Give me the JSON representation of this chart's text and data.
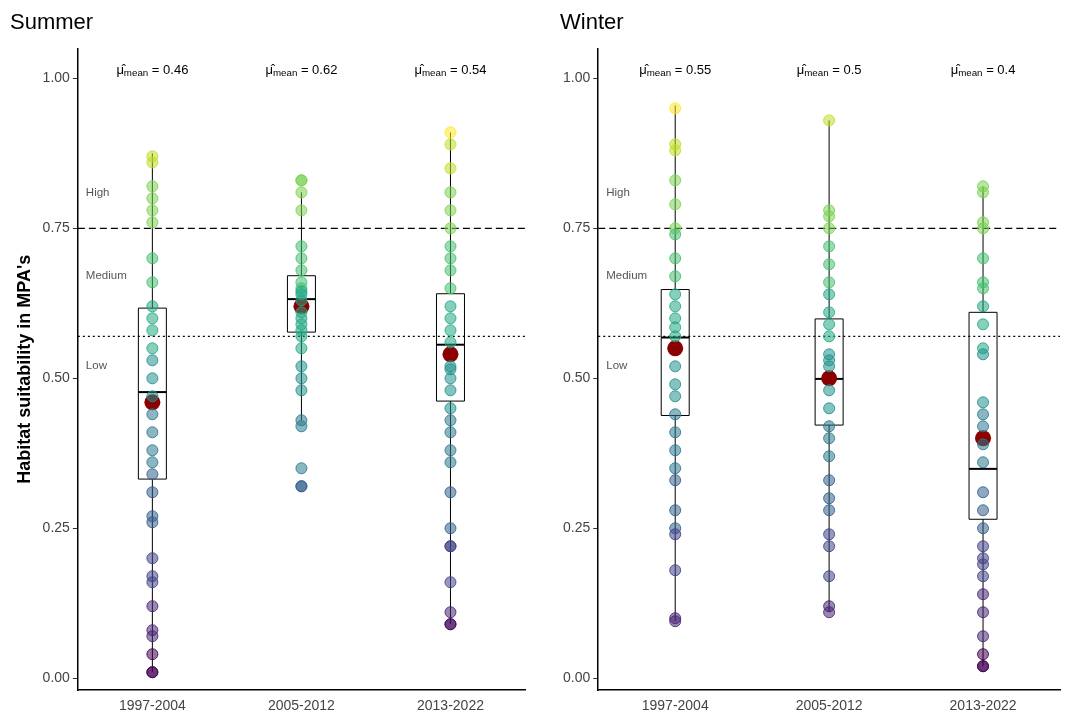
{
  "chart_data": [
    {
      "type": "box",
      "title": "Summer",
      "ylabel": "Habitat suitability in MPA's",
      "categories": [
        "1997-2004",
        "2005-2012",
        "2013-2022"
      ],
      "ylim": [
        -0.02,
        1.05
      ],
      "yticks": [
        {
          "value": 0,
          "label": "0.00"
        },
        {
          "value": 0.25,
          "label": "0.25"
        },
        {
          "value": 0.5,
          "label": "0.50"
        },
        {
          "value": 0.75,
          "label": "0.75"
        },
        {
          "value": 1,
          "label": "1.00"
        }
      ],
      "grid": false,
      "legend": false,
      "marker": "circle",
      "boxes": [
        {
          "low": 0.01,
          "q1": 0.332,
          "median": 0.477,
          "q3": 0.617,
          "high": 0.875,
          "mean": 0.46
        },
        {
          "low": 0.43,
          "q1": 0.577,
          "median": 0.632,
          "q3": 0.671,
          "high": 0.81,
          "mean": 0.62
        },
        {
          "low": 0.09,
          "q1": 0.462,
          "median": 0.556,
          "q3": 0.641,
          "high": 0.91,
          "mean": 0.54
        }
      ],
      "series": [
        {
          "type": "scatter",
          "x": [
            "1997-2004",
            "1997-2004",
            "1997-2004",
            "1997-2004",
            "1997-2004",
            "1997-2004",
            "1997-2004",
            "1997-2004",
            "1997-2004",
            "1997-2004",
            "1997-2004",
            "1997-2004",
            "1997-2004",
            "1997-2004",
            "1997-2004",
            "1997-2004",
            "1997-2004",
            "1997-2004",
            "1997-2004",
            "1997-2004",
            "1997-2004",
            "1997-2004",
            "1997-2004",
            "1997-2004",
            "1997-2004",
            "1997-2004",
            "1997-2004",
            "1997-2004",
            "1997-2004",
            "1997-2004",
            "1997-2004",
            "1997-2004",
            "2005-2012",
            "2005-2012",
            "2005-2012",
            "2005-2012",
            "2005-2012",
            "2005-2012",
            "2005-2012",
            "2005-2012",
            "2005-2012",
            "2005-2012",
            "2005-2012",
            "2005-2012",
            "2005-2012",
            "2005-2012",
            "2005-2012",
            "2005-2012",
            "2005-2012",
            "2005-2012",
            "2005-2012",
            "2005-2012",
            "2005-2012",
            "2005-2012",
            "2005-2012",
            "2005-2012",
            "2005-2012",
            "2005-2012",
            "2013-2022",
            "2013-2022",
            "2013-2022",
            "2013-2022",
            "2013-2022",
            "2013-2022",
            "2013-2022",
            "2013-2022",
            "2013-2022",
            "2013-2022",
            "2013-2022",
            "2013-2022",
            "2013-2022",
            "2013-2022",
            "2013-2022",
            "2013-2022",
            "2013-2022",
            "2013-2022",
            "2013-2022",
            "2013-2022",
            "2013-2022",
            "2013-2022",
            "2013-2022",
            "2013-2022",
            "2013-2022",
            "2013-2022",
            "2013-2022",
            "2013-2022",
            "2013-2022",
            "2013-2022",
            "2013-2022"
          ],
          "values": [
            0.87,
            0.86,
            0.82,
            0.8,
            0.78,
            0.76,
            0.7,
            0.66,
            0.62,
            0.6,
            0.58,
            0.55,
            0.53,
            0.5,
            0.47,
            0.44,
            0.41,
            0.38,
            0.36,
            0.34,
            0.31,
            0.27,
            0.26,
            0.2,
            0.17,
            0.16,
            0.12,
            0.08,
            0.07,
            0.04,
            0.01,
            0.01,
            0.83,
            0.83,
            0.81,
            0.78,
            0.72,
            0.7,
            0.68,
            0.66,
            0.65,
            0.64,
            0.63,
            0.645,
            0.61,
            0.6,
            0.59,
            0.58,
            0.57,
            0.55,
            0.52,
            0.5,
            0.48,
            0.43,
            0.42,
            0.35,
            0.32,
            0.32,
            0.91,
            0.89,
            0.85,
            0.81,
            0.78,
            0.75,
            0.72,
            0.7,
            0.68,
            0.65,
            0.62,
            0.6,
            0.58,
            0.56,
            0.515,
            0.52,
            0.5,
            0.48,
            0.45,
            0.43,
            0.41,
            0.38,
            0.36,
            0.31,
            0.25,
            0.22,
            0.22,
            0.16,
            0.11,
            0.09,
            0.09
          ],
          "colors": [
            "#bddf26",
            "#bddf26",
            "#7ad151",
            "#7ad151",
            "#7ad151",
            "#7ad151",
            "#44bf70",
            "#44bf70",
            "#22a884",
            "#22a884",
            "#22a884",
            "#22a884",
            "#21918c",
            "#21918c",
            "#21918c",
            "#2a788e",
            "#2a788e",
            "#2a788e",
            "#2a788e",
            "#355f8d",
            "#355f8d",
            "#355f8d",
            "#355f8d",
            "#414487",
            "#414487",
            "#414487",
            "#482475",
            "#482475",
            "#482475",
            "#440154",
            "#440154",
            "#440154",
            "#7ad151",
            "#7ad151",
            "#7ad151",
            "#7ad151",
            "#44bf70",
            "#44bf70",
            "#44bf70",
            "#44bf70",
            "#44bf70",
            "#22a884",
            "#22a884",
            "#22a884",
            "#22a884",
            "#22a884",
            "#22a884",
            "#22a884",
            "#22a884",
            "#22a884",
            "#21918c",
            "#21918c",
            "#21918c",
            "#2a788e",
            "#2a788e",
            "#2a788e",
            "#355f8d",
            "#355f8d",
            "#fde725",
            "#bddf26",
            "#bddf26",
            "#7ad151",
            "#7ad151",
            "#7ad151",
            "#44bf70",
            "#44bf70",
            "#44bf70",
            "#44bf70",
            "#22a884",
            "#22a884",
            "#22a884",
            "#22a884",
            "#21918c",
            "#21918c",
            "#21918c",
            "#21918c",
            "#21918c",
            "#2a788e",
            "#2a788e",
            "#2a788e",
            "#2a788e",
            "#355f8d",
            "#355f8d",
            "#414487",
            "#414487",
            "#414487",
            "#482475",
            "#482475",
            "#440154"
          ]
        }
      ],
      "ref_lines": [
        {
          "axis": "y",
          "value": 0.75,
          "line_style": "dashed",
          "color": "#000000"
        },
        {
          "axis": "y",
          "value": 0.57,
          "line_style": "dotted",
          "color": "#000000"
        }
      ],
      "annotations": [
        "μ̂$_{mean}$ = 0.46",
        "μ̂$_{mean}$ = 0.62",
        "μ̂$_{mean}$ = 0.54",
        "High",
        "Medium",
        "Low"
      ]
    },
    {
      "type": "box",
      "title": "Winter",
      "categories": [
        "1997-2004",
        "2005-2012",
        "2013-2022"
      ],
      "ylim": [
        -0.02,
        1.05
      ],
      "yticks": [
        {
          "value": 0,
          "label": "0.00"
        },
        {
          "value": 0.25,
          "label": "0.25"
        },
        {
          "value": 0.5,
          "label": "0.50"
        },
        {
          "value": 0.75,
          "label": "0.75"
        },
        {
          "value": 1,
          "label": "1.00"
        }
      ],
      "grid": false,
      "legend": false,
      "marker": "circle",
      "boxes": [
        {
          "low": 0.095,
          "q1": 0.438,
          "median": 0.568,
          "q3": 0.648,
          "high": 0.955,
          "mean": 0.55
        },
        {
          "low": 0.11,
          "q1": 0.422,
          "median": 0.499,
          "q3": 0.599,
          "high": 0.93,
          "mean": 0.5
        },
        {
          "low": 0.02,
          "q1": 0.265,
          "median": 0.349,
          "q3": 0.61,
          "high": 0.82,
          "mean": 0.4
        }
      ],
      "series": [
        {
          "type": "scatter",
          "x": [
            "1997-2004",
            "1997-2004",
            "1997-2004",
            "1997-2004",
            "1997-2004",
            "1997-2004",
            "1997-2004",
            "1997-2004",
            "1997-2004",
            "1997-2004",
            "1997-2004",
            "1997-2004",
            "1997-2004",
            "1997-2004",
            "1997-2004",
            "1997-2004",
            "1997-2004",
            "1997-2004",
            "1997-2004",
            "1997-2004",
            "1997-2004",
            "1997-2004",
            "1997-2004",
            "1997-2004",
            "1997-2004",
            "1997-2004",
            "1997-2004",
            "1997-2004",
            "2005-2012",
            "2005-2012",
            "2005-2012",
            "2005-2012",
            "2005-2012",
            "2005-2012",
            "2005-2012",
            "2005-2012",
            "2005-2012",
            "2005-2012",
            "2005-2012",
            "2005-2012",
            "2005-2012",
            "2005-2012",
            "2005-2012",
            "2005-2012",
            "2005-2012",
            "2005-2012",
            "2005-2012",
            "2005-2012",
            "2005-2012",
            "2005-2012",
            "2005-2012",
            "2005-2012",
            "2005-2012",
            "2005-2012",
            "2005-2012",
            "2013-2022",
            "2013-2022",
            "2013-2022",
            "2013-2022",
            "2013-2022",
            "2013-2022",
            "2013-2022",
            "2013-2022",
            "2013-2022",
            "2013-2022",
            "2013-2022",
            "2013-2022",
            "2013-2022",
            "2013-2022",
            "2013-2022",
            "2013-2022",
            "2013-2022",
            "2013-2022",
            "2013-2022",
            "2013-2022",
            "2013-2022",
            "2013-2022",
            "2013-2022",
            "2013-2022",
            "2013-2022",
            "2013-2022",
            "2013-2022",
            "2013-2022",
            "2013-2022"
          ],
          "values": [
            0.95,
            0.89,
            0.88,
            0.83,
            0.79,
            0.75,
            0.74,
            0.7,
            0.67,
            0.64,
            0.62,
            0.6,
            0.57,
            0.585,
            0.52,
            0.49,
            0.47,
            0.44,
            0.41,
            0.38,
            0.35,
            0.33,
            0.28,
            0.25,
            0.24,
            0.18,
            0.1,
            0.095,
            0.93,
            0.78,
            0.77,
            0.75,
            0.72,
            0.69,
            0.66,
            0.64,
            0.61,
            0.59,
            0.57,
            0.54,
            0.52,
            0.53,
            0.48,
            0.45,
            0.42,
            0.4,
            0.37,
            0.33,
            0.3,
            0.28,
            0.24,
            0.22,
            0.17,
            0.12,
            0.11,
            0.82,
            0.81,
            0.76,
            0.75,
            0.7,
            0.66,
            0.65,
            0.62,
            0.59,
            0.55,
            0.54,
            0.46,
            0.44,
            0.42,
            0.39,
            0.36,
            0.31,
            0.28,
            0.25,
            0.22,
            0.2,
            0.19,
            0.17,
            0.14,
            0.11,
            0.07,
            0.04,
            0.02,
            0.02
          ],
          "colors": [
            "#fde725",
            "#bddf26",
            "#bddf26",
            "#7ad151",
            "#7ad151",
            "#7ad151",
            "#44bf70",
            "#44bf70",
            "#44bf70",
            "#22a884",
            "#22a884",
            "#22a884",
            "#22a884",
            "#22a884",
            "#21918c",
            "#21918c",
            "#21918c",
            "#2a788e",
            "#2a788e",
            "#2a788e",
            "#2a788e",
            "#355f8d",
            "#355f8d",
            "#355f8d",
            "#414487",
            "#414487",
            "#482475",
            "#482475",
            "#bddf26",
            "#7ad151",
            "#7ad151",
            "#7ad151",
            "#44bf70",
            "#44bf70",
            "#44bf70",
            "#22a884",
            "#22a884",
            "#22a884",
            "#22a884",
            "#21918c",
            "#21918c",
            "#21918c",
            "#21918c",
            "#21918c",
            "#2a788e",
            "#2a788e",
            "#2a788e",
            "#355f8d",
            "#355f8d",
            "#355f8d",
            "#414487",
            "#414487",
            "#414487",
            "#482475",
            "#482475",
            "#7ad151",
            "#7ad151",
            "#7ad151",
            "#7ad151",
            "#44bf70",
            "#44bf70",
            "#44bf70",
            "#22a884",
            "#22a884",
            "#22a884",
            "#21918c",
            "#21918c",
            "#2a788e",
            "#2a788e",
            "#2a788e",
            "#2a788e",
            "#355f8d",
            "#355f8d",
            "#355f8d",
            "#414487",
            "#414487",
            "#414487",
            "#414487",
            "#482475",
            "#482475",
            "#482475",
            "#440154",
            "#440154",
            "#440154"
          ]
        }
      ],
      "ref_lines": [
        {
          "axis": "y",
          "value": 0.75,
          "line_style": "dashed",
          "color": "#000000"
        },
        {
          "axis": "y",
          "value": 0.57,
          "line_style": "dotted",
          "color": "#000000"
        }
      ],
      "annotations": [
        "μ̂$_{mean}$ = 0.55",
        "μ̂$_{mean}$ = 0.5",
        "μ̂$_{mean}$ = 0.4",
        "High",
        "Medium",
        "Low"
      ]
    }
  ]
}
